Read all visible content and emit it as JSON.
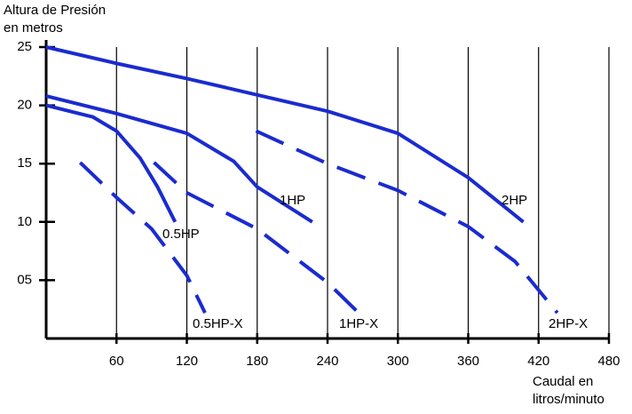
{
  "chart_data": {
    "type": "line",
    "y_label": [
      "Altura de Presión",
      "en metros"
    ],
    "x_label": [
      "Caudal en",
      "litros/minuto"
    ],
    "xlim": [
      0,
      480
    ],
    "ylim": [
      0,
      25
    ],
    "xticks": [
      60,
      120,
      180,
      240,
      300,
      360,
      420,
      480
    ],
    "yticks": [
      {
        "value": 5,
        "label": "05"
      },
      10,
      15,
      20,
      25
    ],
    "series": [
      {
        "name": "2HP",
        "color": "#1a2bd0",
        "dashed": false,
        "x": [
          0,
          60,
          120,
          180,
          240,
          300,
          360,
          407
        ],
        "values": [
          25,
          23.6,
          22.3,
          20.9,
          19.5,
          17.6,
          13.8,
          10
        ]
      },
      {
        "name": "1HP",
        "color": "#1a2bd0",
        "dashed": false,
        "x": [
          0,
          60,
          120,
          160,
          180,
          227
        ],
        "values": [
          20.8,
          19.3,
          17.6,
          15.2,
          13,
          10
        ]
      },
      {
        "name": "0.5HP",
        "color": "#1a2bd0",
        "dashed": false,
        "x": [
          0,
          40,
          60,
          80,
          95,
          110
        ],
        "values": [
          20,
          19,
          17.8,
          15.5,
          13,
          10
        ]
      },
      {
        "name": "0.5HP-X",
        "color": "#1a2bd0",
        "dashed": true,
        "x": [
          29,
          60,
          90,
          120,
          135.5
        ],
        "values": [
          15.1,
          12.1,
          9.4,
          5.4,
          2.2
        ]
      },
      {
        "name": "1HP-X",
        "color": "#1a2bd0",
        "dashed": true,
        "x": [
          92,
          120,
          180,
          240,
          266.5
        ],
        "values": [
          15.1,
          12.5,
          9.4,
          4.8,
          2.2
        ]
      },
      {
        "name": "2HP-X",
        "color": "#1a2bd0",
        "dashed": true,
        "x": [
          179,
          240,
          300,
          360,
          400,
          436
        ],
        "values": [
          17.8,
          15,
          12.7,
          9.6,
          6.6,
          2.2
        ]
      }
    ]
  }
}
